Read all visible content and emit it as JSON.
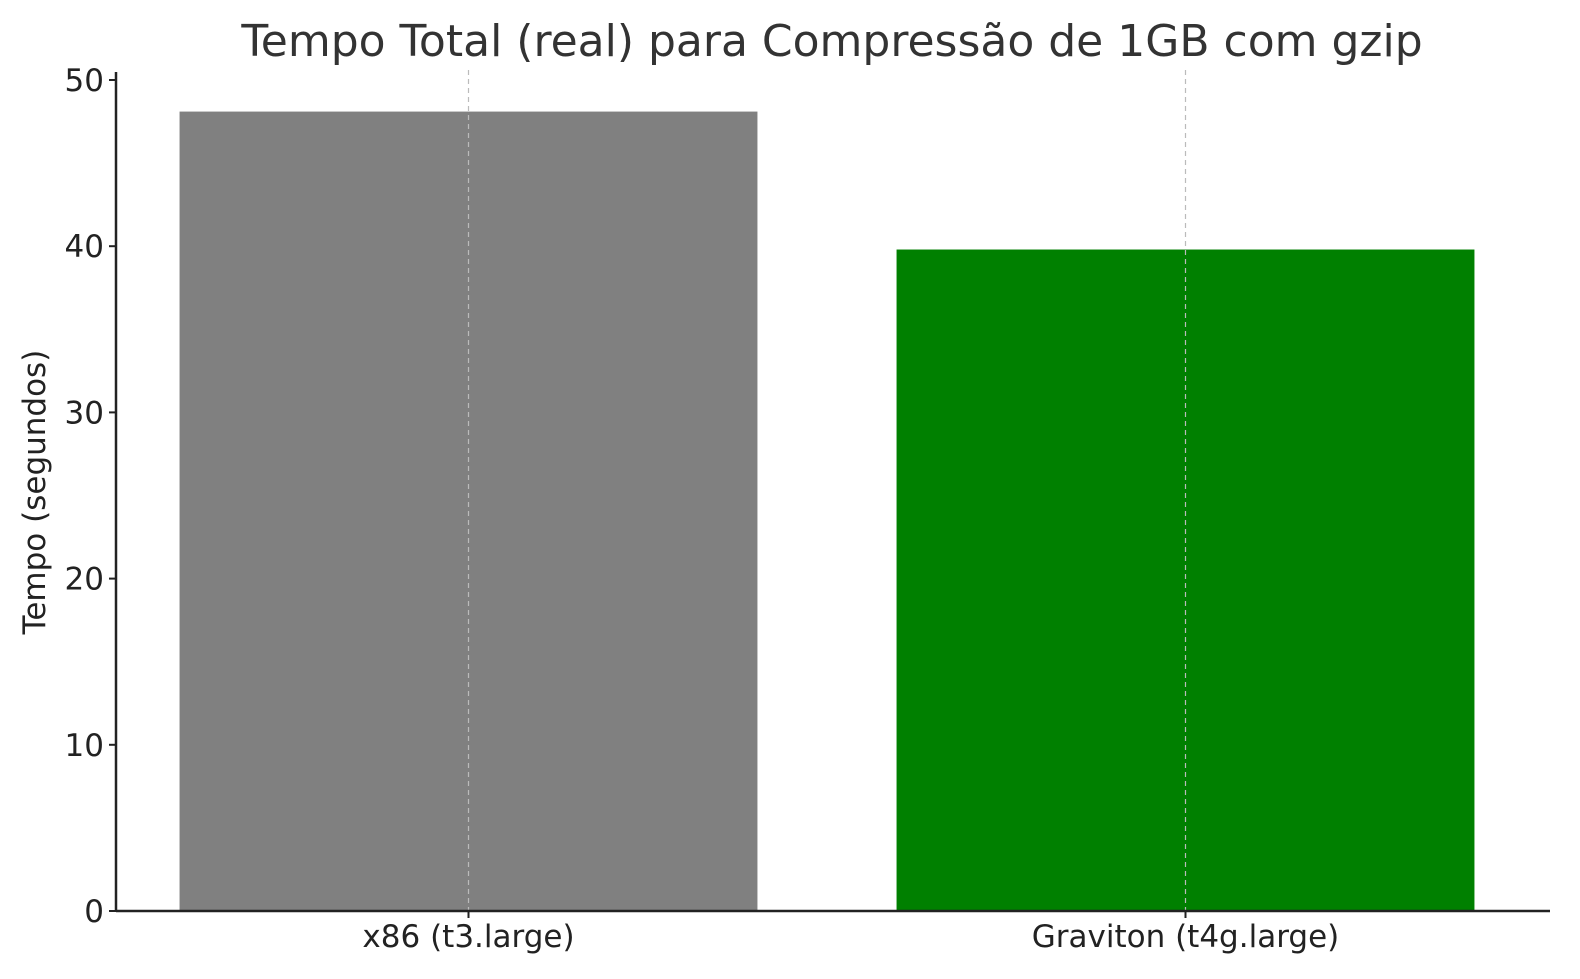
{
  "chart_data": {
    "type": "bar",
    "title": "Tempo Total (real) para Compressão de 1GB com gzip",
    "xlabel": "",
    "ylabel": "Tempo (segundos)",
    "categories": [
      "x86 (t3.large)",
      "Graviton (t4g.large)"
    ],
    "values": [
      48.1,
      39.8
    ],
    "colors": [
      "#808080",
      "#008000"
    ],
    "ylim": [
      0,
      50
    ],
    "yticks": [
      0,
      10,
      20,
      30,
      40,
      50
    ],
    "grid": "vertical-dashed",
    "legend": "none"
  }
}
